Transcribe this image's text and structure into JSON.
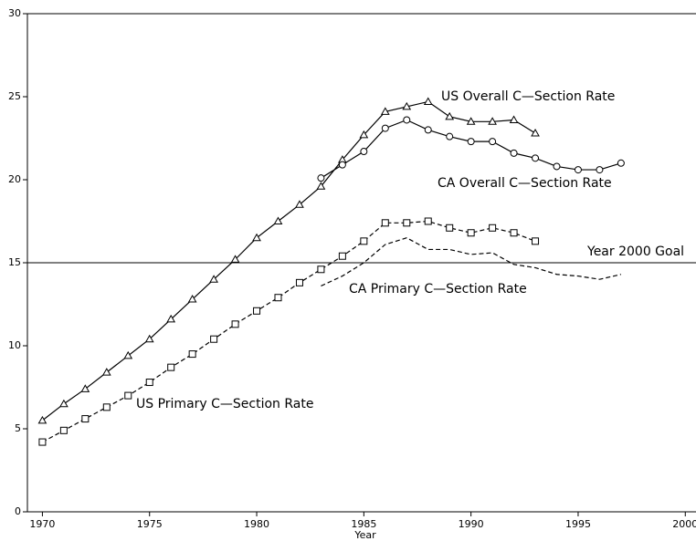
{
  "chart_data": {
    "type": "line",
    "x_label": "Year",
    "xlim": [
      1969.3,
      2000.5
    ],
    "xticks": [
      1970,
      1975,
      1980,
      1985,
      1990,
      1995,
      2000
    ],
    "ylim": [
      0,
      30
    ],
    "yticks": [
      0,
      5,
      10,
      15,
      20,
      25,
      30
    ],
    "reference_line": {
      "value": 15,
      "label": "Year 2000 Goal"
    },
    "series": [
      {
        "name": "US Overall C—Section Rate",
        "color": "#000000",
        "marker": "triangle",
        "dash": false,
        "x": [
          1970,
          1971,
          1972,
          1973,
          1974,
          1975,
          1976,
          1977,
          1978,
          1979,
          1980,
          1981,
          1982,
          1983,
          1984,
          1985,
          1986,
          1987,
          1988,
          1989,
          1990,
          1991,
          1992,
          1993
        ],
        "values": [
          5.5,
          6.5,
          7.4,
          8.4,
          9.4,
          10.4,
          11.6,
          12.8,
          14.0,
          15.2,
          16.5,
          17.5,
          18.5,
          19.6,
          21.2,
          22.7,
          24.1,
          24.4,
          24.7,
          23.8,
          23.5,
          23.5,
          23.6,
          22.8
        ]
      },
      {
        "name": "CA Overall C—Section Rate",
        "color": "#000000",
        "marker": "circle",
        "dash": false,
        "x": [
          1983,
          1984,
          1985,
          1986,
          1987,
          1988,
          1989,
          1990,
          1991,
          1992,
          1993,
          1994,
          1995,
          1996,
          1997
        ],
        "values": [
          20.1,
          20.9,
          21.7,
          23.1,
          23.6,
          23.0,
          22.6,
          22.3,
          22.3,
          21.6,
          21.3,
          20.8,
          20.6,
          20.6,
          21.0
        ]
      },
      {
        "name": "US Primary C—Section Rate",
        "color": "#000000",
        "marker": "square",
        "dash": true,
        "x": [
          1970,
          1971,
          1972,
          1973,
          1974,
          1975,
          1976,
          1977,
          1978,
          1979,
          1980,
          1981,
          1982,
          1983,
          1984,
          1985,
          1986,
          1987,
          1988,
          1989,
          1990,
          1991,
          1992,
          1993
        ],
        "values": [
          4.2,
          4.9,
          5.6,
          6.3,
          7.0,
          7.8,
          8.7,
          9.5,
          10.4,
          11.3,
          12.1,
          12.9,
          13.8,
          14.6,
          15.4,
          16.3,
          17.4,
          17.4,
          17.5,
          17.1,
          16.8,
          17.1,
          16.8,
          16.3
        ]
      },
      {
        "name": "CA Primary C—Section Rate",
        "color": "#000000",
        "marker": null,
        "dash": true,
        "x": [
          1983,
          1984,
          1985,
          1986,
          1987,
          1988,
          1989,
          1990,
          1991,
          1992,
          1993,
          1994,
          1995,
          1996,
          1997
        ],
        "values": [
          13.6,
          14.2,
          15.0,
          16.1,
          16.5,
          15.8,
          15.8,
          15.5,
          15.6,
          14.9,
          14.7,
          14.3,
          14.2,
          14.0,
          14.3
        ]
      }
    ]
  }
}
